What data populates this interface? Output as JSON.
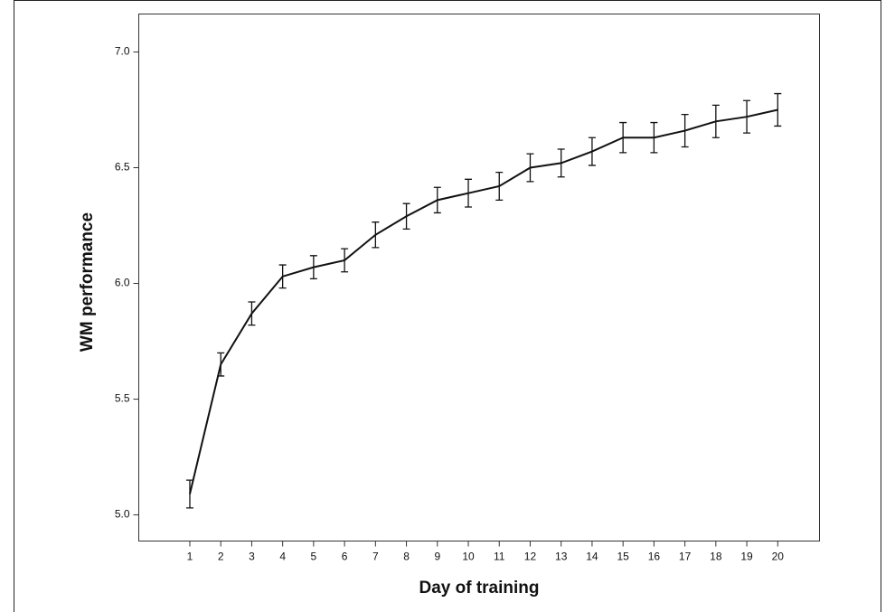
{
  "chart_data": {
    "type": "line",
    "x_label": "Day of training",
    "y_label": "WM performance",
    "x": [
      1,
      2,
      3,
      4,
      5,
      6,
      7,
      8,
      9,
      10,
      11,
      12,
      13,
      14,
      15,
      16,
      17,
      18,
      19,
      20
    ],
    "series": [
      {
        "color": "#111111",
        "values": [
          5.09,
          5.65,
          5.87,
          6.03,
          6.07,
          6.1,
          6.21,
          6.29,
          6.36,
          6.39,
          6.42,
          6.5,
          6.52,
          6.57,
          6.63,
          6.63,
          6.66,
          6.7,
          6.72,
          6.75
        ],
        "errors": [
          0.06,
          0.05,
          0.05,
          0.05,
          0.05,
          0.05,
          0.055,
          0.055,
          0.055,
          0.06,
          0.06,
          0.06,
          0.06,
          0.06,
          0.065,
          0.065,
          0.07,
          0.07,
          0.07,
          0.07
        ]
      }
    ],
    "xlim": [
      -0.65,
      21.35
    ],
    "xticks": [
      1,
      2,
      3,
      4,
      5,
      6,
      7,
      8,
      9,
      10,
      11,
      12,
      13,
      14,
      15,
      16,
      17,
      18,
      19,
      20
    ],
    "ylim": [
      4.887,
      7.164
    ],
    "yticks": [
      {
        "value": 5,
        "label": "5.0"
      },
      {
        "value": 5.5,
        "label": "5.5"
      },
      {
        "value": 6,
        "label": "6.0"
      },
      {
        "value": 6.5,
        "label": "6.5"
      },
      {
        "value": 7,
        "label": "7.0"
      }
    ]
  }
}
